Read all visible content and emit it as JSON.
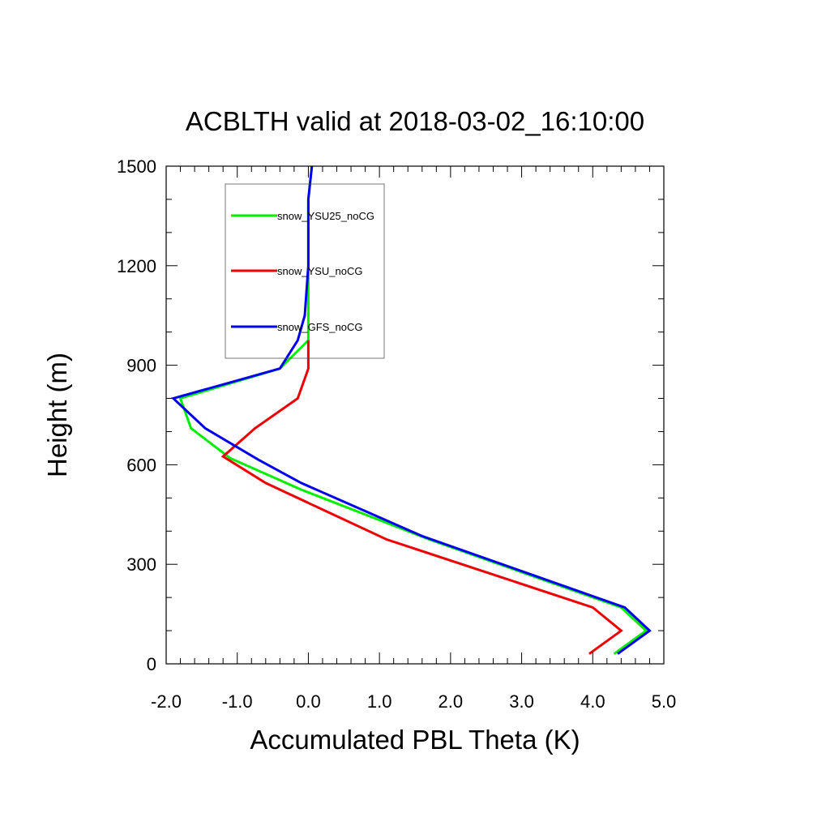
{
  "chart_data": {
    "type": "line",
    "title": "ACBLTH valid at 2018-03-02_16:10:00",
    "xlabel": "Accumulated PBL Theta (K)",
    "ylabel": "Height (m)",
    "xlim": [
      -2.0,
      5.0
    ],
    "ylim": [
      0,
      1500
    ],
    "xticks": [
      -2.0,
      -1.0,
      0.0,
      1.0,
      2.0,
      3.0,
      4.0,
      5.0
    ],
    "xtick_labels": [
      "-2.0",
      "-1.0",
      "0.0",
      "1.0",
      "2.0",
      "3.0",
      "4.0",
      "5.0"
    ],
    "yticks": [
      0,
      300,
      600,
      900,
      1200,
      1500
    ],
    "ytick_labels": [
      "0",
      "300",
      "600",
      "900",
      "1200",
      "1500"
    ],
    "grid": false,
    "legend_position": "top-left",
    "series": [
      {
        "name": "snow_YSU25_noCG",
        "color": "#00ee00",
        "points": [
          [
            4.3,
            30
          ],
          [
            4.75,
            100
          ],
          [
            4.4,
            170
          ],
          [
            1.7,
            375
          ],
          [
            -0.1,
            525
          ],
          [
            -1.1,
            620
          ],
          [
            -1.65,
            710
          ],
          [
            -1.8,
            800
          ],
          [
            -0.4,
            890
          ],
          [
            0.0,
            975
          ],
          [
            0.0,
            1050
          ],
          [
            0.0,
            1200
          ],
          [
            0.0,
            1400
          ],
          [
            0.05,
            1500
          ]
        ]
      },
      {
        "name": "snow_YSU_noCG",
        "color": "#ee0000",
        "points": [
          [
            3.95,
            30
          ],
          [
            4.4,
            100
          ],
          [
            4.0,
            170
          ],
          [
            1.1,
            375
          ],
          [
            -0.6,
            545
          ],
          [
            -1.2,
            625
          ],
          [
            -0.75,
            710
          ],
          [
            -0.15,
            800
          ],
          [
            0.0,
            890
          ],
          [
            0.0,
            975
          ]
        ]
      },
      {
        "name": "snow_GFS_noCG",
        "color": "#0000ee",
        "points": [
          [
            4.35,
            30
          ],
          [
            4.8,
            100
          ],
          [
            4.45,
            170
          ],
          [
            1.6,
            385
          ],
          [
            -0.1,
            545
          ],
          [
            -0.7,
            615
          ],
          [
            -1.45,
            710
          ],
          [
            -1.9,
            800
          ],
          [
            -0.4,
            890
          ],
          [
            -0.15,
            975
          ],
          [
            -0.05,
            1050
          ],
          [
            0.0,
            1200
          ],
          [
            0.0,
            1400
          ],
          [
            0.05,
            1500
          ]
        ]
      }
    ]
  }
}
